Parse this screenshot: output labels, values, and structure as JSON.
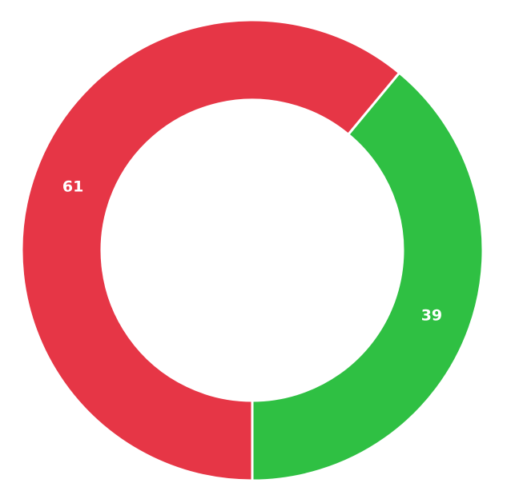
{
  "chart_data": {
    "type": "pie",
    "variant": "donut",
    "title": "",
    "slices": [
      {
        "label": "39",
        "value": 39,
        "color": "#2fc043"
      },
      {
        "label": "61",
        "value": 61,
        "color": "#e63646"
      }
    ],
    "legend": "none",
    "data_labels": "inside"
  }
}
